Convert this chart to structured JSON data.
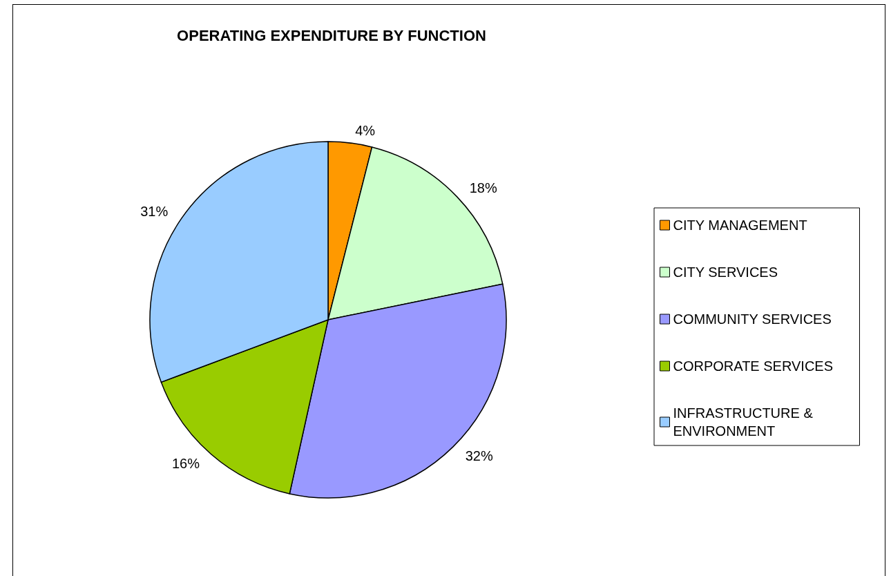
{
  "chart_data": {
    "type": "pie",
    "title": "OPERATING EXPENDITURE BY FUNCTION",
    "categories": [
      "CITY MANAGEMENT",
      "CITY SERVICES",
      "COMMUNITY SERVICES",
      "CORPORATE SERVICES",
      "INFRASTRUCTURE & ENVIRONMENT"
    ],
    "values": [
      4,
      18,
      32,
      16,
      31
    ],
    "value_labels": [
      "4%",
      "18%",
      "32%",
      "16%",
      "31%"
    ],
    "colors": [
      "#ff9900",
      "#ccffcc",
      "#9999ff",
      "#99cc00",
      "#99ccff"
    ],
    "legend": "right"
  }
}
